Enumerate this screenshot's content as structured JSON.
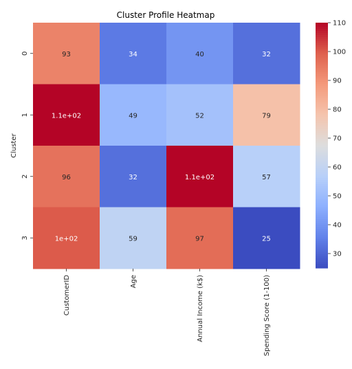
{
  "chart_data": {
    "type": "heatmap",
    "title": "Cluster Profile Heatmap",
    "xlabel": "",
    "ylabel": "Cluster",
    "x_categories": [
      "CustomerID",
      "Age",
      "Annual Income (k$)",
      "Spending Score (1-100)"
    ],
    "y_categories": [
      "0",
      "1",
      "2",
      "3"
    ],
    "values": [
      [
        93,
        34,
        40,
        32
      ],
      [
        110,
        49,
        52,
        79
      ],
      [
        96,
        32,
        110,
        57
      ],
      [
        100,
        59,
        97,
        25
      ]
    ],
    "annotations": [
      [
        "93",
        "34",
        "40",
        "32"
      ],
      [
        "1.1e+02",
        "49",
        "52",
        "79"
      ],
      [
        "96",
        "32",
        "1.1e+02",
        "57"
      ],
      [
        "1e+02",
        "59",
        "97",
        "25"
      ]
    ],
    "colormap": "coolwarm",
    "vmin": 25,
    "vmax": 110,
    "colorbar_ticks": [
      30,
      40,
      50,
      60,
      70,
      80,
      90,
      100,
      110
    ],
    "grid": false
  }
}
